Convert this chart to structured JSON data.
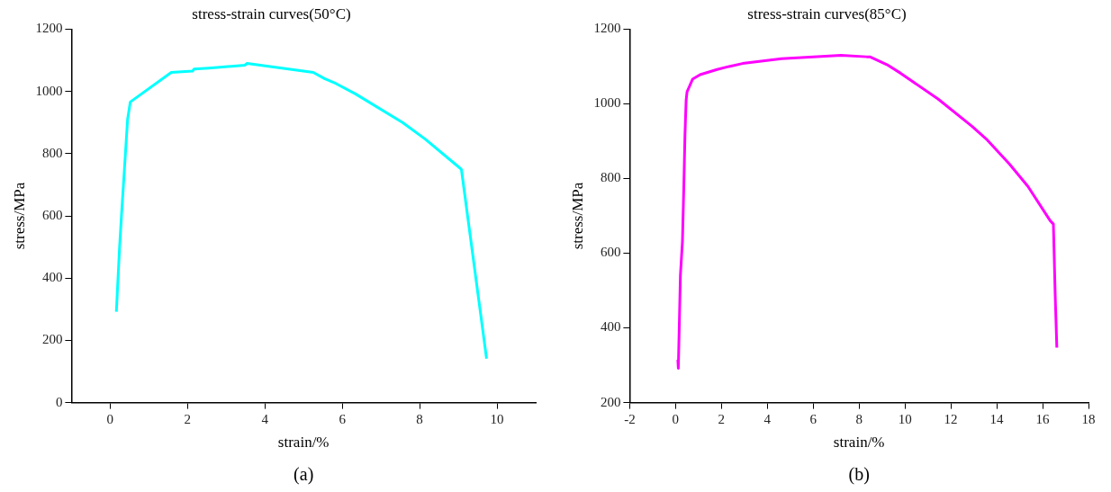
{
  "chart_data": [
    {
      "type": "line",
      "title": "stress-strain curves(50°C)",
      "xlabel": "strain/%",
      "ylabel": "stress/MPa",
      "annotations": [
        "(a)"
      ],
      "xlim": [
        -1,
        11
      ],
      "xticks": [
        0,
        2,
        4,
        6,
        8,
        10
      ],
      "ylim": [
        0,
        1200
      ],
      "yticks": [
        0,
        200,
        400,
        600,
        800,
        1000,
        1200
      ],
      "grid": false,
      "legend": false,
      "marker": "none",
      "line_style": "solid",
      "series": [
        {
          "color": "#00ffff",
          "x": [
            0.16,
            0.24,
            0.29,
            0.36,
            0.45,
            0.52,
            1.58,
            2.13,
            2.17,
            2.55,
            3.48,
            3.54,
            5.25,
            5.54,
            5.84,
            6.34,
            7.56,
            8.15,
            8.99,
            9.08,
            9.73
          ],
          "values": [
            292,
            493,
            597,
            733,
            910,
            966,
            1061,
            1065,
            1072,
            1075,
            1084,
            1090,
            1061,
            1041,
            1025,
            992,
            900,
            846,
            759,
            749,
            141
          ]
        }
      ]
    },
    {
      "type": "line",
      "title": "stress-strain curves(85°C)",
      "xlabel": "strain/%",
      "ylabel": "stress/MPa",
      "annotations": [
        "(b)"
      ],
      "xlim": [
        -2,
        18
      ],
      "xticks": [
        -2,
        0,
        2,
        4,
        6,
        8,
        10,
        12,
        14,
        16,
        18
      ],
      "ylim": [
        200,
        1200
      ],
      "yticks": [
        200,
        400,
        600,
        800,
        1000,
        1200
      ],
      "grid": false,
      "legend": false,
      "marker": "none",
      "line_style": "solid",
      "series": [
        {
          "color": "#ff00ff",
          "x": [
            0.1,
            0.12,
            0.21,
            0.3,
            0.36,
            0.41,
            0.46,
            0.5,
            0.74,
            1.07,
            1.81,
            2.33,
            2.92,
            4.62,
            7.21,
            8.33,
            8.47,
            9.21,
            9.81,
            11.44,
            12.92,
            13.59,
            14.55,
            15.36,
            16.33,
            16.47,
            16.55,
            16.62
          ],
          "values": [
            315,
            292,
            540,
            632,
            779,
            917,
            1009,
            1032,
            1066,
            1078,
            1092,
            1100,
            1108,
            1121,
            1130,
            1126,
            1126,
            1105,
            1082,
            1013,
            940,
            903,
            839,
            779,
            687,
            678,
            485,
            347
          ]
        }
      ]
    }
  ]
}
